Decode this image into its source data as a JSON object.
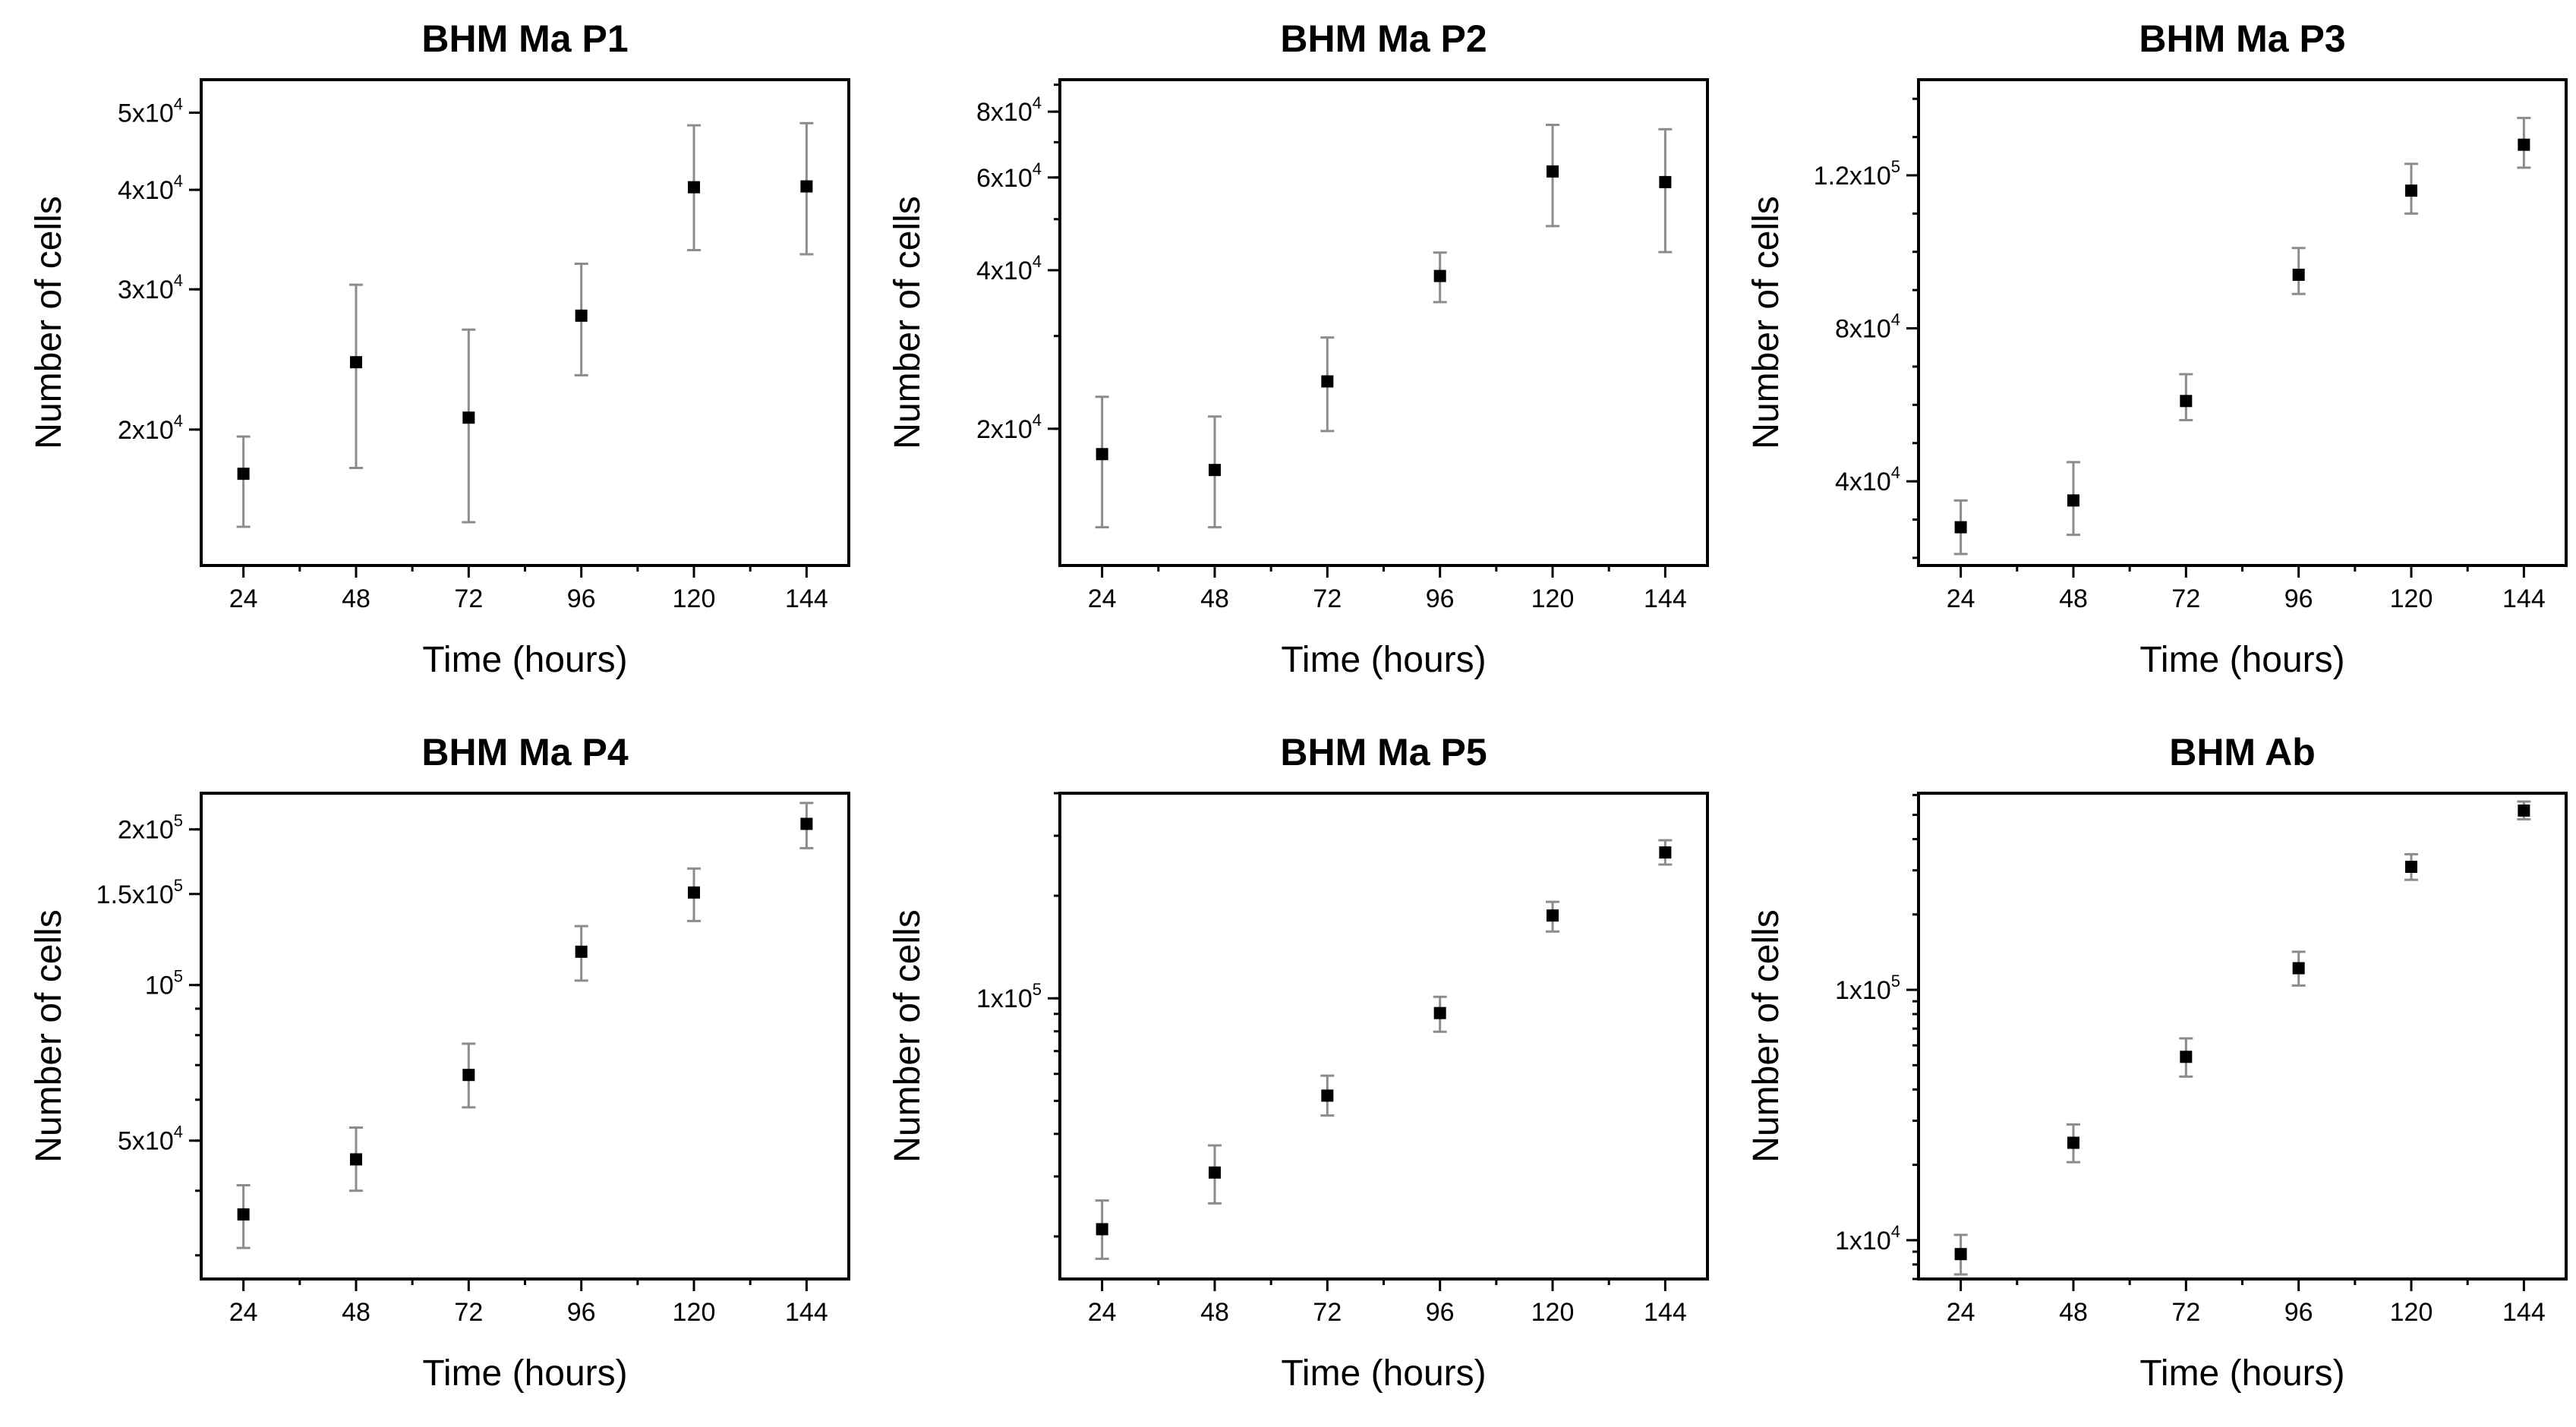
{
  "figure": {
    "x_label": "Time (hours)",
    "y_label": "Number of cells"
  },
  "chart_data": [
    {
      "type": "scatter",
      "title": "BHM Ma P1",
      "xlabel": "Time (hours)",
      "ylabel": "Number of cells",
      "yscale": "log",
      "x": [
        24,
        48,
        72,
        96,
        120,
        144
      ],
      "xticks": [
        "24",
        "48",
        "72",
        "96",
        "120",
        "144"
      ],
      "ylim": [
        13500,
        55000
      ],
      "yticks": [
        {
          "value": 20000,
          "mantissa": "2x10",
          "exp": "4"
        },
        {
          "value": 30000,
          "mantissa": "3x10",
          "exp": "4"
        },
        {
          "value": 40000,
          "mantissa": "4x10",
          "exp": "4"
        },
        {
          "value": 50000,
          "mantissa": "5x10",
          "exp": "4"
        }
      ],
      "values": [
        17600,
        24300,
        20700,
        27800,
        40300,
        40400
      ],
      "err_low": [
        15100,
        17900,
        15300,
        23400,
        33600,
        33200
      ],
      "err_high": [
        19600,
        30400,
        26700,
        32300,
        48200,
        48500
      ]
    },
    {
      "type": "scatter",
      "title": "BHM Ma P2",
      "xlabel": "Time (hours)",
      "ylabel": "Number of cells",
      "yscale": "log",
      "x": [
        24,
        48,
        72,
        96,
        120,
        144
      ],
      "xticks": [
        "24",
        "48",
        "72",
        "96",
        "120",
        "144"
      ],
      "ylim": [
        11000,
        92000
      ],
      "yticks": [
        {
          "value": 20000,
          "mantissa": "2x10",
          "exp": "4"
        },
        {
          "value": 40000,
          "mantissa": "4x10",
          "exp": "4"
        },
        {
          "value": 60000,
          "mantissa": "6x10",
          "exp": "4"
        },
        {
          "value": 80000,
          "mantissa": "8x10",
          "exp": "4"
        }
      ],
      "values": [
        17900,
        16700,
        24600,
        39000,
        61600,
        58800
      ],
      "err_low": [
        13000,
        13000,
        19800,
        34800,
        48500,
        43300
      ],
      "err_high": [
        23000,
        21100,
        29800,
        43200,
        75500,
        74100
      ]
    },
    {
      "type": "scatter",
      "title": "BHM Ma P3",
      "xlabel": "Time (hours)",
      "ylabel": "Number of cells",
      "yscale": "linear",
      "x": [
        24,
        48,
        72,
        96,
        120,
        144
      ],
      "xticks": [
        "24",
        "48",
        "72",
        "96",
        "120",
        "144"
      ],
      "ylim": [
        18000,
        145000
      ],
      "yticks": [
        {
          "value": 40000,
          "mantissa": "4x10",
          "exp": "4"
        },
        {
          "value": 80000,
          "mantissa": "8x10",
          "exp": "4"
        },
        {
          "value": 120000,
          "mantissa": "1.2x10",
          "exp": "5"
        }
      ],
      "values": [
        28000,
        35000,
        61000,
        94000,
        116000,
        128000
      ],
      "err_low": [
        21000,
        26000,
        56000,
        89000,
        110000,
        122000
      ],
      "err_high": [
        35000,
        45000,
        68000,
        101000,
        123000,
        135000
      ]
    },
    {
      "type": "scatter",
      "title": "BHM Ma P4",
      "xlabel": "Time (hours)",
      "ylabel": "Number of cells",
      "yscale": "log",
      "x": [
        24,
        48,
        72,
        96,
        120,
        144
      ],
      "xticks": [
        "24",
        "48",
        "72",
        "96",
        "120",
        "144"
      ],
      "ylim": [
        27000,
        235000
      ],
      "yticks": [
        {
          "value": 50000,
          "mantissa": "5x10",
          "exp": "4"
        },
        {
          "value": 100000,
          "mantissa": "10",
          "exp": "5"
        },
        {
          "value": 150000,
          "mantissa": "1.5x10",
          "exp": "5"
        },
        {
          "value": 200000,
          "mantissa": "2x10",
          "exp": "5"
        }
      ],
      "values": [
        36000,
        46000,
        67000,
        116000,
        151000,
        205000
      ],
      "err_low": [
        31000,
        40000,
        58000,
        102000,
        133000,
        184000
      ],
      "err_high": [
        41000,
        53000,
        77000,
        130000,
        168000,
        225000
      ]
    },
    {
      "type": "scatter",
      "title": "BHM Ma P5",
      "xlabel": "Time (hours)",
      "ylabel": "Number of cells",
      "yscale": "log",
      "x": [
        24,
        48,
        72,
        96,
        120,
        144
      ],
      "xticks": [
        "24",
        "48",
        "72",
        "96",
        "120",
        "144"
      ],
      "ylim": [
        15000,
        400000
      ],
      "yticks": [
        {
          "value": 100000,
          "mantissa": "1x10",
          "exp": "5"
        }
      ],
      "values": [
        21000,
        30800,
        51800,
        90500,
        175000,
        268000
      ],
      "err_low": [
        17200,
        25000,
        45300,
        79800,
        157000,
        247000
      ],
      "err_high": [
        25500,
        37000,
        59300,
        101000,
        192000,
        291000
      ]
    },
    {
      "type": "scatter",
      "title": "BHM Ab",
      "xlabel": "Time (hours)",
      "ylabel": "Number of cells",
      "yscale": "log",
      "x": [
        24,
        48,
        72,
        96,
        120,
        144
      ],
      "xticks": [
        "24",
        "48",
        "72",
        "96",
        "120",
        "144"
      ],
      "ylim": [
        7000,
        610000
      ],
      "yticks": [
        {
          "value": 10000,
          "mantissa": "1x10",
          "exp": "4"
        },
        {
          "value": 100000,
          "mantissa": "1x10",
          "exp": "5"
        }
      ],
      "values": [
        8800,
        24500,
        54000,
        122000,
        310000,
        520000
      ],
      "err_low": [
        7300,
        20500,
        45000,
        104000,
        275000,
        480000
      ],
      "err_high": [
        10500,
        29000,
        64000,
        142000,
        348000,
        565000
      ]
    }
  ]
}
